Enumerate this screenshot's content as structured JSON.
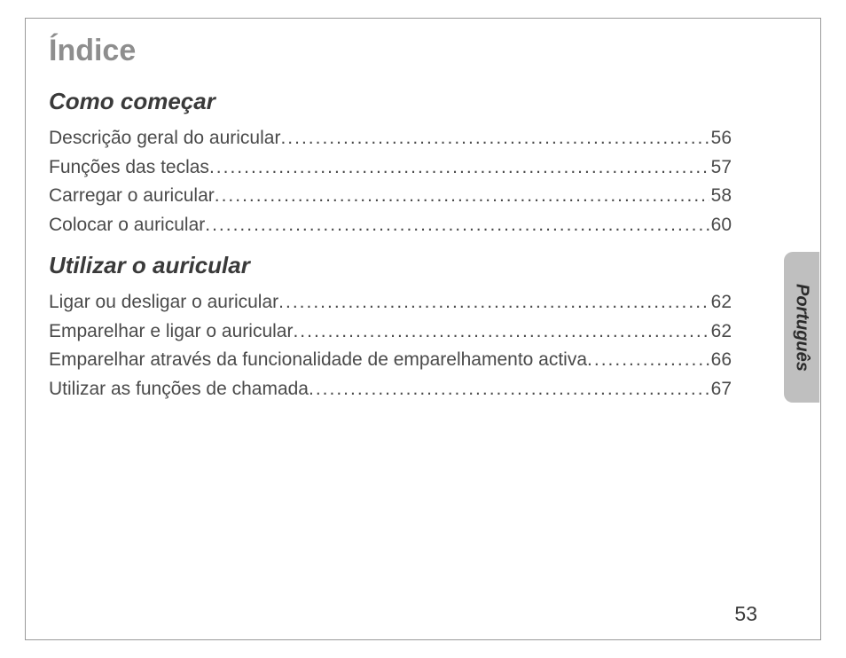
{
  "page": {
    "title": "Índice",
    "pageNumber": "53",
    "sideTab": "Português",
    "colors": {
      "titleColor": "#8e8e8e",
      "textColor": "#4a4a4a",
      "sectionColor": "#3a3a3a",
      "tabBg": "#bfbfbf",
      "frameBorder": "#9a9a9a",
      "background": "#ffffff"
    },
    "typography": {
      "titleSize": 34,
      "sectionSize": 26,
      "lineSize": 21,
      "pageNumSize": 23,
      "tabSize": 20
    }
  },
  "sections": [
    {
      "title": "Como começar",
      "entries": [
        {
          "label": "Descrição geral do auricular",
          "page": "56"
        },
        {
          "label": "Funções das teclas",
          "page": "57"
        },
        {
          "label": "Carregar o auricular",
          "page": "58"
        },
        {
          "label": "Colocar o auricular ",
          "page": "60"
        }
      ]
    },
    {
      "title": "Utilizar o auricular",
      "entries": [
        {
          "label": "Ligar ou desligar o auricular ",
          "page": "62"
        },
        {
          "label": "Emparelhar e ligar o auricular ",
          "page": "62"
        },
        {
          "label": "Emparelhar através da funcionalidade de emparelhamento activa ",
          "page": "66"
        },
        {
          "label": "Utilizar as funções de chamada ",
          "page": "67"
        }
      ]
    }
  ]
}
